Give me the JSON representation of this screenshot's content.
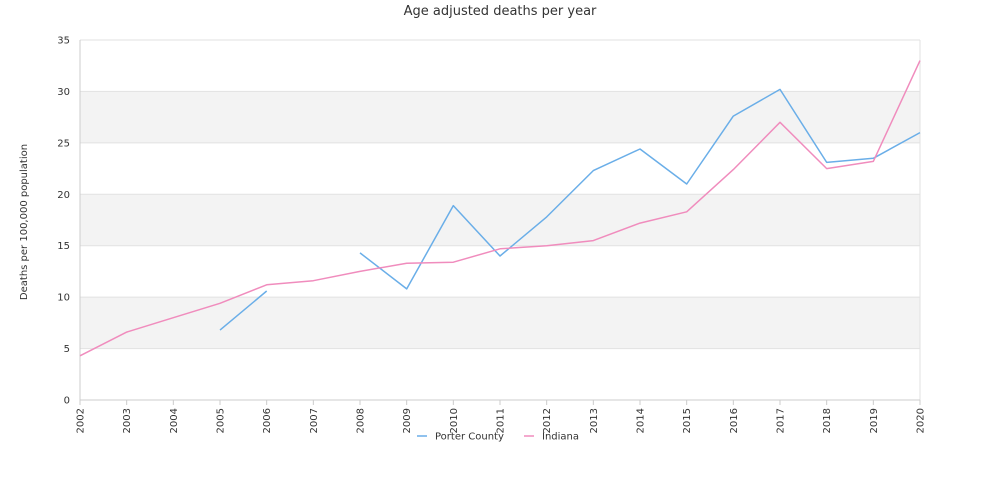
{
  "chart_data": {
    "type": "line",
    "title": "Age adjusted deaths per year",
    "xlabel": "",
    "ylabel": "Deaths per 100,000 population",
    "ylim": [
      0,
      35
    ],
    "yticks": [
      0,
      5,
      10,
      15,
      20,
      25,
      30,
      35
    ],
    "x": [
      "2002",
      "2003",
      "2004",
      "2005",
      "2006",
      "2007",
      "2008",
      "2009",
      "2010",
      "2011",
      "2012",
      "2013",
      "2014",
      "2015",
      "2016",
      "2017",
      "2018",
      "2019",
      "2020"
    ],
    "grid": "alternating horizontal bands",
    "legend_position": "bottom",
    "series": [
      {
        "name": "Porter County",
        "color": "#6aaee8",
        "values": [
          null,
          null,
          null,
          6.8,
          10.6,
          null,
          14.3,
          10.8,
          18.9,
          14.0,
          17.8,
          22.3,
          24.4,
          21.0,
          27.6,
          30.2,
          23.1,
          23.5,
          26.0
        ]
      },
      {
        "name": "Indiana",
        "color": "#f08cbd",
        "values": [
          4.3,
          6.6,
          8.0,
          9.4,
          11.2,
          11.6,
          12.5,
          13.3,
          13.4,
          14.7,
          15.0,
          15.5,
          17.2,
          18.3,
          22.4,
          27.0,
          22.5,
          23.2,
          33.0
        ]
      }
    ]
  }
}
